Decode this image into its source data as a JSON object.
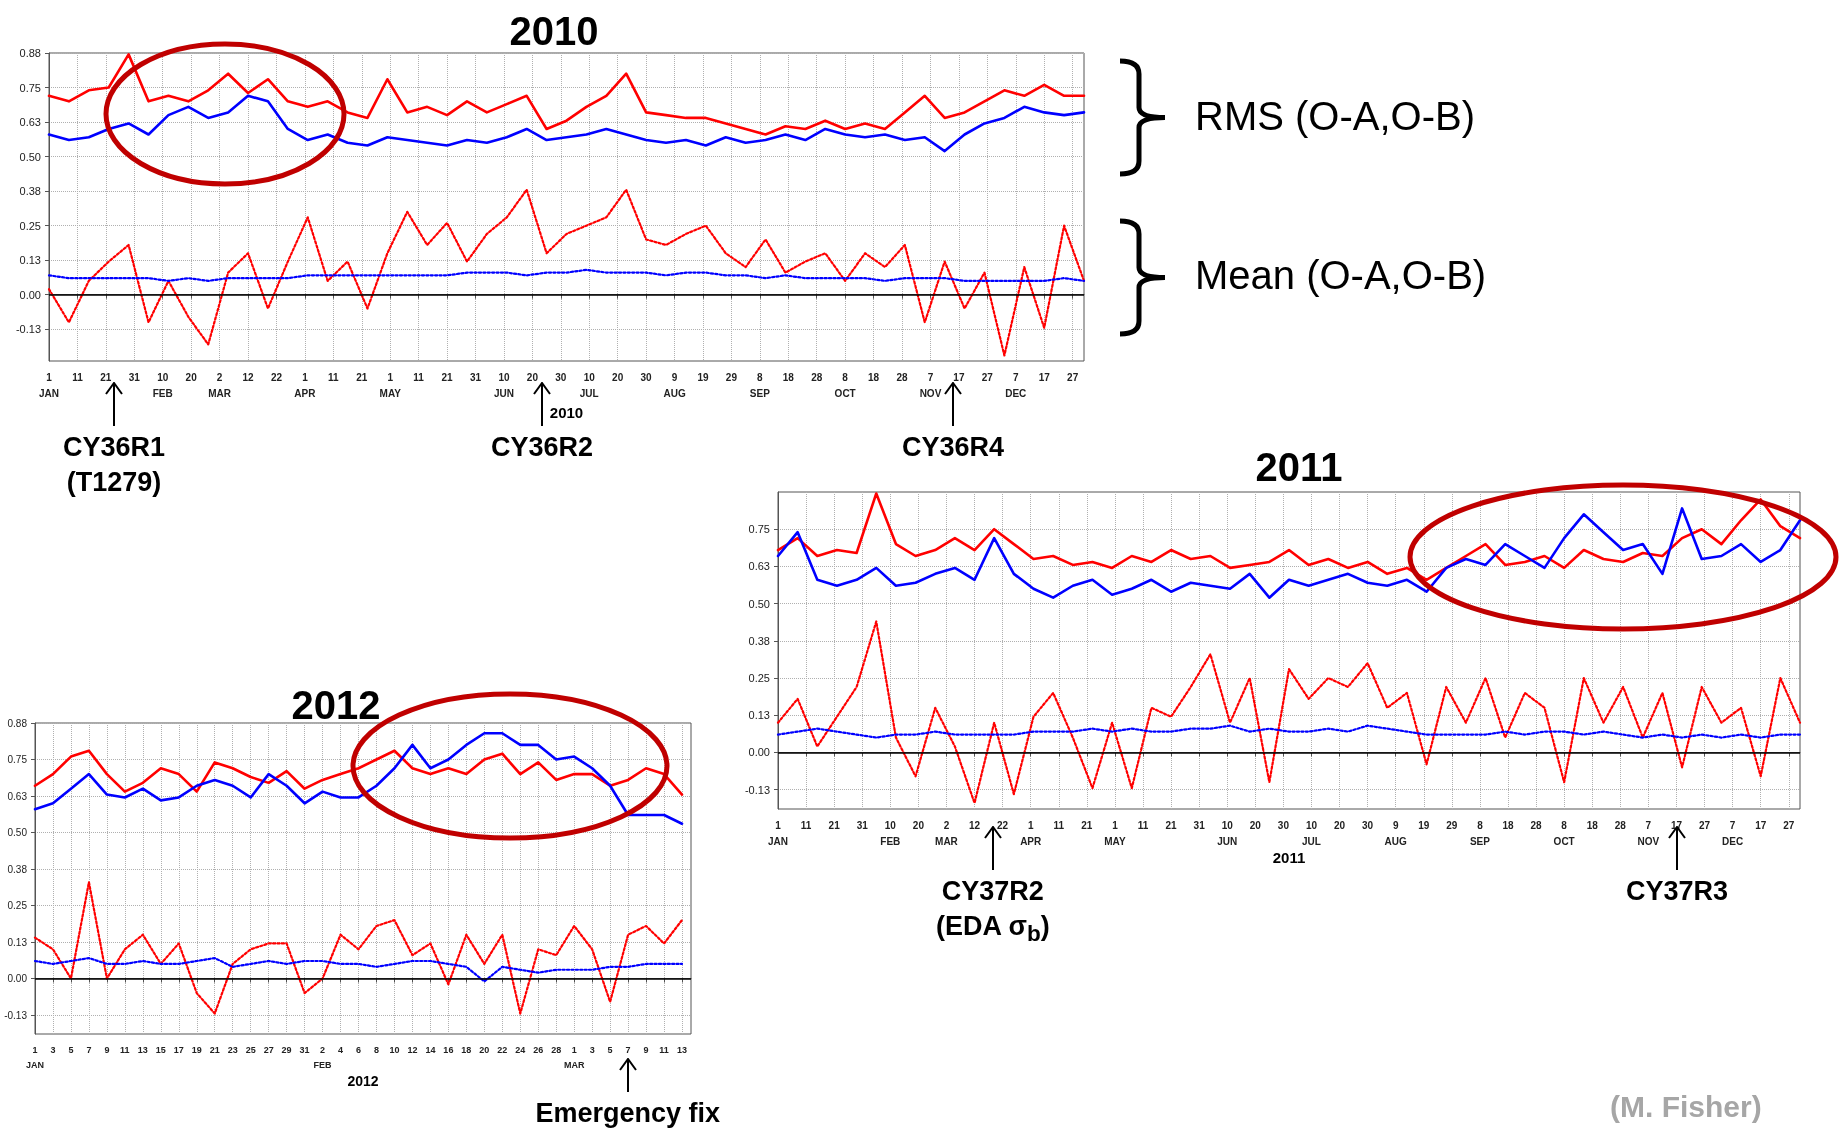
{
  "chart_data": [
    {
      "type": "line",
      "title": "2010",
      "xlabel": "2010",
      "marker": "none",
      "grid": true,
      "annotations": [
        "RMS (O-A,O-B)",
        "Mean (O-A,O-B)",
        "CY36R1\n(T1279)",
        "CY36R2",
        "CY36R4"
      ],
      "xlim": [
        "2010-01-01",
        "2010-12-31"
      ],
      "ylim": [
        -0.24,
        0.875
      ],
      "xticks": [
        {
          "value": "2010-01-01",
          "label": "1\nJAN"
        },
        {
          "value": "2010-01-11",
          "label": "11"
        },
        {
          "value": "2010-01-21",
          "label": "21"
        },
        {
          "value": "2010-01-31",
          "label": "31"
        },
        {
          "value": "2010-02-10",
          "label": "10\nFEB"
        },
        {
          "value": "2010-02-20",
          "label": "20"
        },
        {
          "value": "2010-03-02",
          "label": "2\nMAR"
        },
        {
          "value": "2010-03-12",
          "label": "12"
        },
        {
          "value": "2010-03-22",
          "label": "22"
        },
        {
          "value": "2010-04-01",
          "label": "1\nAPR"
        },
        {
          "value": "2010-04-11",
          "label": "11"
        },
        {
          "value": "2010-04-21",
          "label": "21"
        },
        {
          "value": "2010-05-01",
          "label": "1\nMAY"
        },
        {
          "value": "2010-05-11",
          "label": "11"
        },
        {
          "value": "2010-05-21",
          "label": "21"
        },
        {
          "value": "2010-05-31",
          "label": "31"
        },
        {
          "value": "2010-06-10",
          "label": "10\nJUN"
        },
        {
          "value": "2010-06-20",
          "label": "20"
        },
        {
          "value": "2010-06-30",
          "label": "30"
        },
        {
          "value": "2010-07-10",
          "label": "10\nJUL"
        },
        {
          "value": "2010-07-20",
          "label": "20"
        },
        {
          "value": "2010-07-30",
          "label": "30"
        },
        {
          "value": "2010-08-09",
          "label": "9\nAUG"
        },
        {
          "value": "2010-08-19",
          "label": "19"
        },
        {
          "value": "2010-08-29",
          "label": "29"
        },
        {
          "value": "2010-09-08",
          "label": "8\nSEP"
        },
        {
          "value": "2010-09-18",
          "label": "18"
        },
        {
          "value": "2010-09-28",
          "label": "28"
        },
        {
          "value": "2010-10-08",
          "label": "8\nOCT"
        },
        {
          "value": "2010-10-18",
          "label": "18"
        },
        {
          "value": "2010-10-28",
          "label": "28"
        },
        {
          "value": "2010-11-07",
          "label": "7\nNOV"
        },
        {
          "value": "2010-11-17",
          "label": "17"
        },
        {
          "value": "2010-11-27",
          "label": "27"
        },
        {
          "value": "2010-12-07",
          "label": "7\nDEC"
        },
        {
          "value": "2010-12-17",
          "label": "17"
        },
        {
          "value": "2010-12-27",
          "label": "27"
        }
      ],
      "yticks": [
        {
          "value": 0.875,
          "label": "0.88"
        },
        {
          "value": 0.75,
          "label": "0.75"
        },
        {
          "value": 0.625,
          "label": "0.63"
        },
        {
          "value": 0.5,
          "label": "0.50"
        },
        {
          "value": 0.375,
          "label": "0.38"
        },
        {
          "value": 0.25,
          "label": "0.25"
        },
        {
          "value": 0.125,
          "label": "0.13"
        },
        {
          "value": 0,
          "label": "0.00"
        },
        {
          "value": -0.125,
          "label": "-0.13"
        }
      ],
      "ref_lines": [
        {
          "axis": "y",
          "value": 0,
          "color": "#000000"
        }
      ],
      "x": [
        "2010-01-01",
        "2010-01-08",
        "2010-01-15",
        "2010-01-22",
        "2010-01-29",
        "2010-02-05",
        "2010-02-12",
        "2010-02-19",
        "2010-02-26",
        "2010-03-05",
        "2010-03-12",
        "2010-03-19",
        "2010-03-26",
        "2010-04-02",
        "2010-04-09",
        "2010-04-16",
        "2010-04-23",
        "2010-04-30",
        "2010-05-07",
        "2010-05-14",
        "2010-05-21",
        "2010-05-28",
        "2010-06-04",
        "2010-06-11",
        "2010-06-18",
        "2010-06-25",
        "2010-07-02",
        "2010-07-09",
        "2010-07-16",
        "2010-07-23",
        "2010-07-30",
        "2010-08-06",
        "2010-08-13",
        "2010-08-20",
        "2010-08-27",
        "2010-09-03",
        "2010-09-10",
        "2010-09-17",
        "2010-09-24",
        "2010-10-01",
        "2010-10-08",
        "2010-10-15",
        "2010-10-22",
        "2010-10-29",
        "2010-11-05",
        "2010-11-12",
        "2010-11-19",
        "2010-11-26",
        "2010-12-03",
        "2010-12-10",
        "2010-12-17",
        "2010-12-24",
        "2010-12-31"
      ],
      "series": [
        {
          "color": "#ff0000",
          "line_style": "solid",
          "values": [
            0.72,
            0.7,
            0.74,
            0.75,
            0.87,
            0.7,
            0.72,
            0.7,
            0.74,
            0.8,
            0.73,
            0.78,
            0.7,
            0.68,
            0.7,
            0.66,
            0.64,
            0.78,
            0.66,
            0.68,
            0.65,
            0.7,
            0.66,
            0.69,
            0.72,
            0.6,
            0.63,
            0.68,
            0.72,
            0.8,
            0.66,
            0.65,
            0.64,
            0.64,
            0.62,
            0.6,
            0.58,
            0.61,
            0.6,
            0.63,
            0.6,
            0.62,
            0.6,
            0.66,
            0.72,
            0.64,
            0.66,
            0.7,
            0.74,
            0.72,
            0.76,
            0.72,
            0.72
          ]
        },
        {
          "color": "#0000ff",
          "line_style": "solid",
          "values": [
            0.58,
            0.56,
            0.57,
            0.6,
            0.62,
            0.58,
            0.65,
            0.68,
            0.64,
            0.66,
            0.72,
            0.7,
            0.6,
            0.56,
            0.58,
            0.55,
            0.54,
            0.57,
            0.56,
            0.55,
            0.54,
            0.56,
            0.55,
            0.57,
            0.6,
            0.56,
            0.57,
            0.58,
            0.6,
            0.58,
            0.56,
            0.55,
            0.56,
            0.54,
            0.57,
            0.55,
            0.56,
            0.58,
            0.56,
            0.6,
            0.58,
            0.57,
            0.58,
            0.56,
            0.57,
            0.52,
            0.58,
            0.62,
            0.64,
            0.68,
            0.66,
            0.65,
            0.66
          ]
        },
        {
          "color": "#ff0000",
          "line_style": "dotted",
          "values": [
            0.02,
            -0.1,
            0.05,
            0.12,
            0.18,
            -0.1,
            0.05,
            -0.08,
            -0.18,
            0.08,
            0.15,
            -0.05,
            0.12,
            0.28,
            0.05,
            0.12,
            -0.05,
            0.15,
            0.3,
            0.18,
            0.26,
            0.12,
            0.22,
            0.28,
            0.38,
            0.15,
            0.22,
            0.25,
            0.28,
            0.38,
            0.2,
            0.18,
            0.22,
            0.25,
            0.15,
            0.1,
            0.2,
            0.08,
            0.12,
            0.15,
            0.05,
            0.15,
            0.1,
            0.18,
            -0.1,
            0.12,
            -0.05,
            0.08,
            -0.22,
            0.1,
            -0.12,
            0.25,
            0.05
          ]
        },
        {
          "color": "#0000ff",
          "line_style": "dotted",
          "values": [
            0.07,
            0.06,
            0.06,
            0.06,
            0.06,
            0.06,
            0.05,
            0.06,
            0.05,
            0.06,
            0.06,
            0.06,
            0.06,
            0.07,
            0.07,
            0.07,
            0.07,
            0.07,
            0.07,
            0.07,
            0.07,
            0.08,
            0.08,
            0.08,
            0.07,
            0.08,
            0.08,
            0.09,
            0.08,
            0.08,
            0.08,
            0.07,
            0.08,
            0.08,
            0.07,
            0.07,
            0.06,
            0.07,
            0.06,
            0.06,
            0.06,
            0.06,
            0.05,
            0.06,
            0.06,
            0.06,
            0.05,
            0.05,
            0.05,
            0.05,
            0.05,
            0.06,
            0.05
          ]
        }
      ]
    },
    {
      "type": "line",
      "title": "2011",
      "xlabel": "2011",
      "marker": "none",
      "grid": true,
      "annotations": [
        "(M. Fisher)",
        "CY37R2\n(EDA σ$_{b}$)",
        "CY37R3"
      ],
      "xlim": [
        "2011-01-01",
        "2011-12-31"
      ],
      "ylim": [
        -0.19,
        0.875
      ],
      "xticks": [
        {
          "value": "2011-01-01",
          "label": "1\nJAN"
        },
        {
          "value": "2011-01-11",
          "label": "11"
        },
        {
          "value": "2011-01-21",
          "label": "21"
        },
        {
          "value": "2011-01-31",
          "label": "31"
        },
        {
          "value": "2011-02-10",
          "label": "10\nFEB"
        },
        {
          "value": "2011-02-20",
          "label": "20"
        },
        {
          "value": "2011-03-02",
          "label": "2\nMAR"
        },
        {
          "value": "2011-03-12",
          "label": "12"
        },
        {
          "value": "2011-03-22",
          "label": "22"
        },
        {
          "value": "2011-04-01",
          "label": "1\nAPR"
        },
        {
          "value": "2011-04-11",
          "label": "11"
        },
        {
          "value": "2011-04-21",
          "label": "21"
        },
        {
          "value": "2011-05-01",
          "label": "1\nMAY"
        },
        {
          "value": "2011-05-11",
          "label": "11"
        },
        {
          "value": "2011-05-21",
          "label": "21"
        },
        {
          "value": "2011-05-31",
          "label": "31"
        },
        {
          "value": "2011-06-10",
          "label": "10\nJUN"
        },
        {
          "value": "2011-06-20",
          "label": "20"
        },
        {
          "value": "2011-06-30",
          "label": "30"
        },
        {
          "value": "2011-07-10",
          "label": "10\nJUL"
        },
        {
          "value": "2011-07-20",
          "label": "20"
        },
        {
          "value": "2011-07-30",
          "label": "30"
        },
        {
          "value": "2011-08-09",
          "label": "9\nAUG"
        },
        {
          "value": "2011-08-19",
          "label": "19"
        },
        {
          "value": "2011-08-29",
          "label": "29"
        },
        {
          "value": "2011-09-08",
          "label": "8\nSEP"
        },
        {
          "value": "2011-09-18",
          "label": "18"
        },
        {
          "value": "2011-09-28",
          "label": "28"
        },
        {
          "value": "2011-10-08",
          "label": "8\nOCT"
        },
        {
          "value": "2011-10-18",
          "label": "18"
        },
        {
          "value": "2011-10-28",
          "label": "28"
        },
        {
          "value": "2011-11-07",
          "label": "7\nNOV"
        },
        {
          "value": "2011-11-17",
          "label": "17"
        },
        {
          "value": "2011-11-27",
          "label": "27"
        },
        {
          "value": "2011-12-07",
          "label": "7\nDEC"
        },
        {
          "value": "2011-12-17",
          "label": "17"
        },
        {
          "value": "2011-12-27",
          "label": "27"
        }
      ],
      "yticks": [
        {
          "value": 0.75,
          "label": "0.75"
        },
        {
          "value": 0.625,
          "label": "0.63"
        },
        {
          "value": 0.5,
          "label": "0.50"
        },
        {
          "value": 0.375,
          "label": "0.38"
        },
        {
          "value": 0.25,
          "label": "0.25"
        },
        {
          "value": 0.125,
          "label": "0.13"
        },
        {
          "value": 0,
          "label": "0.00"
        },
        {
          "value": -0.125,
          "label": "-0.13"
        }
      ],
      "ref_lines": [
        {
          "axis": "y",
          "value": 0,
          "color": "#000000"
        }
      ],
      "x": [
        "2011-01-01",
        "2011-01-08",
        "2011-01-15",
        "2011-01-22",
        "2011-01-29",
        "2011-02-05",
        "2011-02-12",
        "2011-02-19",
        "2011-02-26",
        "2011-03-05",
        "2011-03-12",
        "2011-03-19",
        "2011-03-26",
        "2011-04-02",
        "2011-04-09",
        "2011-04-16",
        "2011-04-23",
        "2011-04-30",
        "2011-05-07",
        "2011-05-14",
        "2011-05-21",
        "2011-05-28",
        "2011-06-04",
        "2011-06-11",
        "2011-06-18",
        "2011-06-25",
        "2011-07-02",
        "2011-07-09",
        "2011-07-16",
        "2011-07-23",
        "2011-07-30",
        "2011-08-06",
        "2011-08-13",
        "2011-08-20",
        "2011-08-27",
        "2011-09-03",
        "2011-09-10",
        "2011-09-17",
        "2011-09-24",
        "2011-10-01",
        "2011-10-08",
        "2011-10-15",
        "2011-10-22",
        "2011-10-29",
        "2011-11-05",
        "2011-11-12",
        "2011-11-19",
        "2011-11-26",
        "2011-12-03",
        "2011-12-10",
        "2011-12-17",
        "2011-12-24",
        "2011-12-31"
      ],
      "series": [
        {
          "color": "#ff0000",
          "line_style": "solid",
          "values": [
            0.68,
            0.72,
            0.66,
            0.68,
            0.67,
            0.87,
            0.7,
            0.66,
            0.68,
            0.72,
            0.68,
            0.75,
            0.7,
            0.65,
            0.66,
            0.63,
            0.64,
            0.62,
            0.66,
            0.64,
            0.68,
            0.65,
            0.66,
            0.62,
            0.63,
            0.64,
            0.68,
            0.63,
            0.65,
            0.62,
            0.64,
            0.6,
            0.62,
            0.58,
            0.62,
            0.66,
            0.7,
            0.63,
            0.64,
            0.66,
            0.62,
            0.68,
            0.65,
            0.64,
            0.67,
            0.66,
            0.72,
            0.75,
            0.7,
            0.78,
            0.85,
            0.76,
            0.72
          ]
        },
        {
          "color": "#0000ff",
          "line_style": "solid",
          "values": [
            0.66,
            0.74,
            0.58,
            0.56,
            0.58,
            0.62,
            0.56,
            0.57,
            0.6,
            0.62,
            0.58,
            0.72,
            0.6,
            0.55,
            0.52,
            0.56,
            0.58,
            0.53,
            0.55,
            0.58,
            0.54,
            0.57,
            0.56,
            0.55,
            0.6,
            0.52,
            0.58,
            0.56,
            0.58,
            0.6,
            0.57,
            0.56,
            0.58,
            0.54,
            0.62,
            0.65,
            0.63,
            0.7,
            0.66,
            0.62,
            0.72,
            0.8,
            0.74,
            0.68,
            0.7,
            0.6,
            0.82,
            0.65,
            0.66,
            0.7,
            0.64,
            0.68,
            0.78
          ]
        },
        {
          "color": "#ff0000",
          "line_style": "dotted",
          "values": [
            0.1,
            0.18,
            0.02,
            0.12,
            0.22,
            0.44,
            0.05,
            -0.08,
            0.15,
            0.02,
            -0.17,
            0.1,
            -0.14,
            0.12,
            0.2,
            0.05,
            -0.12,
            0.1,
            -0.12,
            0.15,
            0.12,
            0.22,
            0.33,
            0.1,
            0.25,
            -0.1,
            0.28,
            0.18,
            0.25,
            0.22,
            0.3,
            0.15,
            0.2,
            -0.04,
            0.22,
            0.1,
            0.25,
            0.05,
            0.2,
            0.15,
            -0.1,
            0.25,
            0.1,
            0.22,
            0.05,
            0.2,
            -0.05,
            0.22,
            0.1,
            0.15,
            -0.08,
            0.25,
            0.1
          ]
        },
        {
          "color": "#0000ff",
          "line_style": "dotted",
          "values": [
            0.06,
            0.07,
            0.08,
            0.07,
            0.06,
            0.05,
            0.06,
            0.06,
            0.07,
            0.06,
            0.06,
            0.06,
            0.06,
            0.07,
            0.07,
            0.07,
            0.08,
            0.07,
            0.08,
            0.07,
            0.07,
            0.08,
            0.08,
            0.09,
            0.07,
            0.08,
            0.07,
            0.07,
            0.08,
            0.07,
            0.09,
            0.08,
            0.07,
            0.06,
            0.06,
            0.06,
            0.06,
            0.07,
            0.06,
            0.07,
            0.07,
            0.06,
            0.07,
            0.06,
            0.05,
            0.06,
            0.05,
            0.06,
            0.05,
            0.06,
            0.05,
            0.06,
            0.06
          ]
        }
      ]
    },
    {
      "type": "line",
      "title": "2012",
      "xlabel": "2012",
      "marker": "none",
      "grid": true,
      "annotations": [
        "Emergency fix"
      ],
      "xlim": [
        "2012-01-01",
        "2012-03-14"
      ],
      "ylim": [
        -0.19,
        0.875
      ],
      "xticks": [
        {
          "value": "2012-01-01",
          "label": "1\nJAN"
        },
        {
          "value": "2012-01-03",
          "label": "3"
        },
        {
          "value": "2012-01-05",
          "label": "5"
        },
        {
          "value": "2012-01-07",
          "label": "7"
        },
        {
          "value": "2012-01-09",
          "label": "9"
        },
        {
          "value": "2012-01-11",
          "label": "11"
        },
        {
          "value": "2012-01-13",
          "label": "13"
        },
        {
          "value": "2012-01-15",
          "label": "15"
        },
        {
          "value": "2012-01-17",
          "label": "17"
        },
        {
          "value": "2012-01-19",
          "label": "19"
        },
        {
          "value": "2012-01-21",
          "label": "21"
        },
        {
          "value": "2012-01-23",
          "label": "23"
        },
        {
          "value": "2012-01-25",
          "label": "25"
        },
        {
          "value": "2012-01-27",
          "label": "27"
        },
        {
          "value": "2012-01-29",
          "label": "29"
        },
        {
          "value": "2012-01-31",
          "label": "31"
        },
        {
          "value": "2012-02-02",
          "label": "2\nFEB"
        },
        {
          "value": "2012-02-04",
          "label": "4"
        },
        {
          "value": "2012-02-06",
          "label": "6"
        },
        {
          "value": "2012-02-08",
          "label": "8"
        },
        {
          "value": "2012-02-10",
          "label": "10"
        },
        {
          "value": "2012-02-12",
          "label": "12"
        },
        {
          "value": "2012-02-14",
          "label": "14"
        },
        {
          "value": "2012-02-16",
          "label": "16"
        },
        {
          "value": "2012-02-18",
          "label": "18"
        },
        {
          "value": "2012-02-20",
          "label": "20"
        },
        {
          "value": "2012-02-22",
          "label": "22"
        },
        {
          "value": "2012-02-24",
          "label": "24"
        },
        {
          "value": "2012-02-26",
          "label": "26"
        },
        {
          "value": "2012-02-28",
          "label": "28"
        },
        {
          "value": "2012-03-01",
          "label": "1\nMAR"
        },
        {
          "value": "2012-03-03",
          "label": "3"
        },
        {
          "value": "2012-03-05",
          "label": "5"
        },
        {
          "value": "2012-03-07",
          "label": "7"
        },
        {
          "value": "2012-03-09",
          "label": "9"
        },
        {
          "value": "2012-03-11",
          "label": "11"
        },
        {
          "value": "2012-03-13",
          "label": "13"
        }
      ],
      "yticks": [
        {
          "value": 0.875,
          "label": "0.88"
        },
        {
          "value": 0.75,
          "label": "0.75"
        },
        {
          "value": 0.625,
          "label": "0.63"
        },
        {
          "value": 0.5,
          "label": "0.50"
        },
        {
          "value": 0.375,
          "label": "0.38"
        },
        {
          "value": 0.25,
          "label": "0.25"
        },
        {
          "value": 0.125,
          "label": "0.13"
        },
        {
          "value": 0,
          "label": "0.00"
        },
        {
          "value": -0.125,
          "label": "-0.13"
        }
      ],
      "ref_lines": [
        {
          "axis": "y",
          "value": 0,
          "color": "#000000"
        }
      ],
      "x": [
        "2012-01-01",
        "2012-01-03",
        "2012-01-05",
        "2012-01-07",
        "2012-01-09",
        "2012-01-11",
        "2012-01-13",
        "2012-01-15",
        "2012-01-17",
        "2012-01-19",
        "2012-01-21",
        "2012-01-23",
        "2012-01-25",
        "2012-01-27",
        "2012-01-29",
        "2012-01-31",
        "2012-02-02",
        "2012-02-04",
        "2012-02-06",
        "2012-02-08",
        "2012-02-10",
        "2012-02-12",
        "2012-02-14",
        "2012-02-16",
        "2012-02-18",
        "2012-02-20",
        "2012-02-22",
        "2012-02-24",
        "2012-02-26",
        "2012-02-28",
        "2012-03-01",
        "2012-03-03",
        "2012-03-05",
        "2012-03-07",
        "2012-03-09",
        "2012-03-11",
        "2012-03-13"
      ],
      "series": [
        {
          "color": "#ff0000",
          "line_style": "solid",
          "values": [
            0.66,
            0.7,
            0.76,
            0.78,
            0.7,
            0.64,
            0.67,
            0.72,
            0.7,
            0.64,
            0.74,
            0.72,
            0.69,
            0.67,
            0.71,
            0.65,
            0.68,
            0.7,
            0.72,
            0.75,
            0.78,
            0.72,
            0.7,
            0.72,
            0.7,
            0.75,
            0.77,
            0.7,
            0.74,
            0.68,
            0.7,
            0.7,
            0.66,
            0.68,
            0.72,
            0.7,
            0.63
          ]
        },
        {
          "color": "#0000ff",
          "line_style": "solid",
          "values": [
            0.58,
            0.6,
            0.65,
            0.7,
            0.63,
            0.62,
            0.65,
            0.61,
            0.62,
            0.66,
            0.68,
            0.66,
            0.62,
            0.7,
            0.66,
            0.6,
            0.64,
            0.62,
            0.62,
            0.66,
            0.72,
            0.8,
            0.72,
            0.75,
            0.8,
            0.84,
            0.84,
            0.8,
            0.8,
            0.75,
            0.76,
            0.72,
            0.66,
            0.56,
            0.56,
            0.56,
            0.53
          ]
        },
        {
          "color": "#ff0000",
          "line_style": "dotted",
          "values": [
            0.14,
            0.1,
            0.0,
            0.33,
            0.0,
            0.1,
            0.15,
            0.05,
            0.12,
            -0.05,
            -0.12,
            0.05,
            0.1,
            0.12,
            0.12,
            -0.05,
            0.0,
            0.15,
            0.1,
            0.18,
            0.2,
            0.08,
            0.12,
            -0.02,
            0.15,
            0.05,
            0.15,
            -0.12,
            0.1,
            0.08,
            0.18,
            0.1,
            -0.08,
            0.15,
            0.18,
            0.12,
            0.2
          ]
        },
        {
          "color": "#0000ff",
          "line_style": "dotted",
          "values": [
            0.06,
            0.05,
            0.06,
            0.07,
            0.05,
            0.05,
            0.06,
            0.05,
            0.05,
            0.06,
            0.07,
            0.04,
            0.05,
            0.06,
            0.05,
            0.06,
            0.06,
            0.05,
            0.05,
            0.04,
            0.05,
            0.06,
            0.06,
            0.05,
            0.04,
            -0.01,
            0.04,
            0.03,
            0.02,
            0.03,
            0.03,
            0.03,
            0.04,
            0.04,
            0.05,
            0.05,
            0.05
          ]
        }
      ]
    }
  ]
}
